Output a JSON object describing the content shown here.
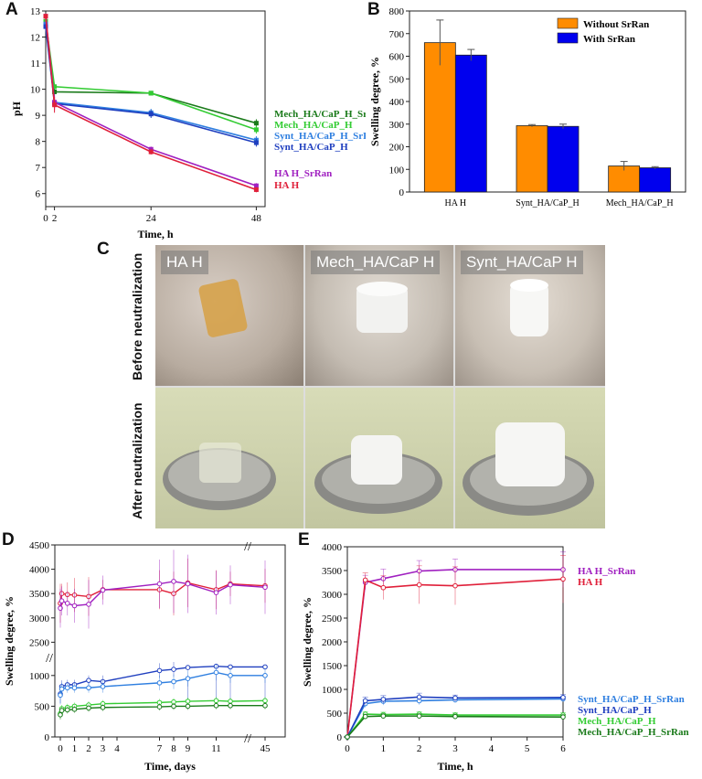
{
  "panel_labels": {
    "a": "A",
    "b": "B",
    "c": "C",
    "d": "D",
    "e": "E"
  },
  "colors": {
    "mech_srran": "#1a7a1a",
    "mech": "#33cc33",
    "synt_srran": "#2f7fe0",
    "synt": "#1f3fbf",
    "ha_srran": "#a020c0",
    "ha": "#e0203a",
    "orange": "#ff8c00",
    "blue": "#0000ee"
  },
  "photos": {
    "columns": [
      "HA H",
      "Mech_HA/CaP H",
      "Synt_HA/CaP H"
    ],
    "rows": [
      "Before neutralization",
      "After neutralization"
    ]
  },
  "chart_data": [
    {
      "id": "A",
      "type": "line",
      "title": "",
      "xlabel": "Time, h",
      "ylabel": "pH",
      "xlim": [
        0,
        50
      ],
      "ylim": [
        5.5,
        13
      ],
      "xticks": [
        "0",
        "2",
        "24",
        "48"
      ],
      "yticks": [
        "6",
        "7",
        "8",
        "9",
        "10",
        "11",
        "12",
        "13"
      ],
      "x": [
        0,
        2,
        24,
        48
      ],
      "series": [
        {
          "name": "Mech_HA/CaP_H_SrRan",
          "values": [
            12.6,
            9.9,
            9.85,
            8.7
          ],
          "err": [
            0.1,
            0.1,
            0.08,
            0.15
          ]
        },
        {
          "name": "Mech_HA/CaP_H",
          "values": [
            12.6,
            10.1,
            9.85,
            8.45
          ],
          "err": [
            0.1,
            0.1,
            0.08,
            0.15
          ]
        },
        {
          "name": "Synt_HA/CaP_H_SrRan",
          "values": [
            12.5,
            9.5,
            9.1,
            8.05
          ],
          "err": [
            0.1,
            0.1,
            0.15,
            0.15
          ]
        },
        {
          "name": "Synt_HA/CaP_H",
          "values": [
            12.4,
            9.45,
            9.05,
            7.95
          ],
          "err": [
            0.1,
            0.1,
            0.15,
            0.15
          ]
        },
        {
          "name": "HA H_SrRan",
          "values": [
            12.8,
            9.5,
            7.7,
            6.3
          ],
          "err": [
            0.1,
            0.3,
            0.1,
            0.1
          ]
        },
        {
          "name": "HA H",
          "values": [
            12.8,
            9.4,
            7.6,
            6.15
          ],
          "err": [
            0.1,
            0.3,
            0.1,
            0.1
          ]
        }
      ]
    },
    {
      "id": "B",
      "type": "bar",
      "xlabel": "",
      "ylabel": "Swelling degree, %",
      "ylim": [
        0,
        800
      ],
      "yticks": [
        "0",
        "100",
        "200",
        "300",
        "400",
        "500",
        "600",
        "700",
        "800"
      ],
      "categories": [
        "HA H",
        "Synt_HA/CaP_H",
        "Mech_HA/CaP_H"
      ],
      "legend": [
        "Without SrRan",
        "With SrRan"
      ],
      "series": [
        {
          "name": "Without SrRan",
          "values": [
            660,
            293,
            115
          ],
          "err": [
            100,
            5,
            20
          ]
        },
        {
          "name": "With SrRan",
          "values": [
            605,
            290,
            107
          ],
          "err": [
            25,
            10,
            5
          ]
        }
      ]
    },
    {
      "id": "D",
      "type": "line",
      "xlabel": "Time, days",
      "ylabel": "Swelling degree, %",
      "ylim": [
        0,
        4500
      ],
      "yticks": [
        "0",
        "500",
        "1000",
        "2500",
        "3000",
        "3500",
        "4000",
        "4500"
      ],
      "xticks": [
        "0",
        "1",
        "2",
        "3",
        "4",
        "7",
        "8",
        "9",
        "11",
        "45"
      ],
      "x": [
        0,
        0.1,
        0.5,
        1,
        2,
        3,
        7,
        8,
        9,
        11,
        12,
        45
      ],
      "series": [
        {
          "name": "HA H",
          "values": [
            3300,
            3500,
            3480,
            3470,
            3440,
            3580,
            3580,
            3500,
            3720,
            3580,
            3700,
            3660
          ],
          "err": [
            400,
            200,
            250,
            350,
            400,
            200,
            400,
            450,
            500,
            400,
            250,
            350
          ]
        },
        {
          "name": "HA H_SrRan",
          "values": [
            3200,
            3350,
            3300,
            3250,
            3280,
            3570,
            3700,
            3750,
            3700,
            3520,
            3680,
            3630
          ],
          "err": [
            400,
            300,
            250,
            350,
            500,
            300,
            500,
            650,
            600,
            450,
            400,
            550
          ]
        },
        {
          "name": "Synt_HA/CaP_H",
          "values": [
            700,
            820,
            850,
            850,
            920,
            900,
            1080,
            1100,
            1130,
            1150,
            1140,
            1140
          ],
          "err": [
            150,
            100,
            80,
            80,
            80,
            100,
            120,
            120,
            130,
            130,
            120,
            120
          ]
        },
        {
          "name": "Synt_HA/CaP_H_SrRan",
          "values": [
            680,
            780,
            800,
            800,
            800,
            820,
            880,
            900,
            950,
            1050,
            1000,
            1000
          ],
          "err": [
            150,
            100,
            80,
            80,
            80,
            100,
            120,
            120,
            130,
            130,
            120,
            120
          ]
        },
        {
          "name": "Mech_HA/CaP_H",
          "values": [
            380,
            460,
            480,
            500,
            520,
            540,
            560,
            570,
            580,
            590,
            580,
            590
          ],
          "err": [
            80,
            60,
            60,
            60,
            60,
            60,
            60,
            60,
            60,
            60,
            60,
            60
          ]
        },
        {
          "name": "Mech_HA/CaP_H_SrRan",
          "values": [
            360,
            430,
            440,
            450,
            470,
            480,
            490,
            500,
            500,
            510,
            510,
            510
          ],
          "err": [
            80,
            60,
            60,
            60,
            60,
            60,
            60,
            60,
            60,
            60,
            60,
            60
          ]
        }
      ]
    },
    {
      "id": "E",
      "type": "line",
      "xlabel": "Time, h",
      "ylabel": "Swelling degree, %",
      "xlim": [
        0,
        6
      ],
      "ylim": [
        0,
        4000
      ],
      "xticks": [
        "0",
        "1",
        "2",
        "3",
        "4",
        "5",
        "6"
      ],
      "yticks": [
        "0",
        "500",
        "1000",
        "1500",
        "2000",
        "2500",
        "3000",
        "3500",
        "4000"
      ],
      "x": [
        0,
        0.5,
        1,
        2,
        3,
        6
      ],
      "series": [
        {
          "name": "HA H_SrRan",
          "values": [
            0,
            3250,
            3330,
            3490,
            3520,
            3520
          ],
          "err": [
            0,
            150,
            200,
            220,
            220,
            370
          ]
        },
        {
          "name": "HA H",
          "values": [
            0,
            3300,
            3140,
            3200,
            3180,
            3320
          ],
          "err": [
            0,
            150,
            250,
            400,
            400,
            500
          ]
        },
        {
          "name": "Synt_HA/CaP_H_SrRan",
          "values": [
            0,
            700,
            750,
            760,
            780,
            800
          ],
          "err": [
            0,
            80,
            80,
            80,
            60,
            60
          ]
        },
        {
          "name": "Synt_HA/CaP_H",
          "values": [
            0,
            760,
            790,
            840,
            820,
            830
          ],
          "err": [
            0,
            80,
            80,
            80,
            60,
            60
          ]
        },
        {
          "name": "Mech_HA/CaP_H",
          "values": [
            0,
            480,
            470,
            480,
            460,
            460
          ],
          "err": [
            0,
            50,
            50,
            50,
            50,
            50
          ]
        },
        {
          "name": "Mech_HA/CaP_H_SrRan",
          "values": [
            0,
            430,
            440,
            440,
            430,
            420
          ],
          "err": [
            0,
            50,
            50,
            50,
            50,
            50
          ]
        }
      ]
    }
  ]
}
